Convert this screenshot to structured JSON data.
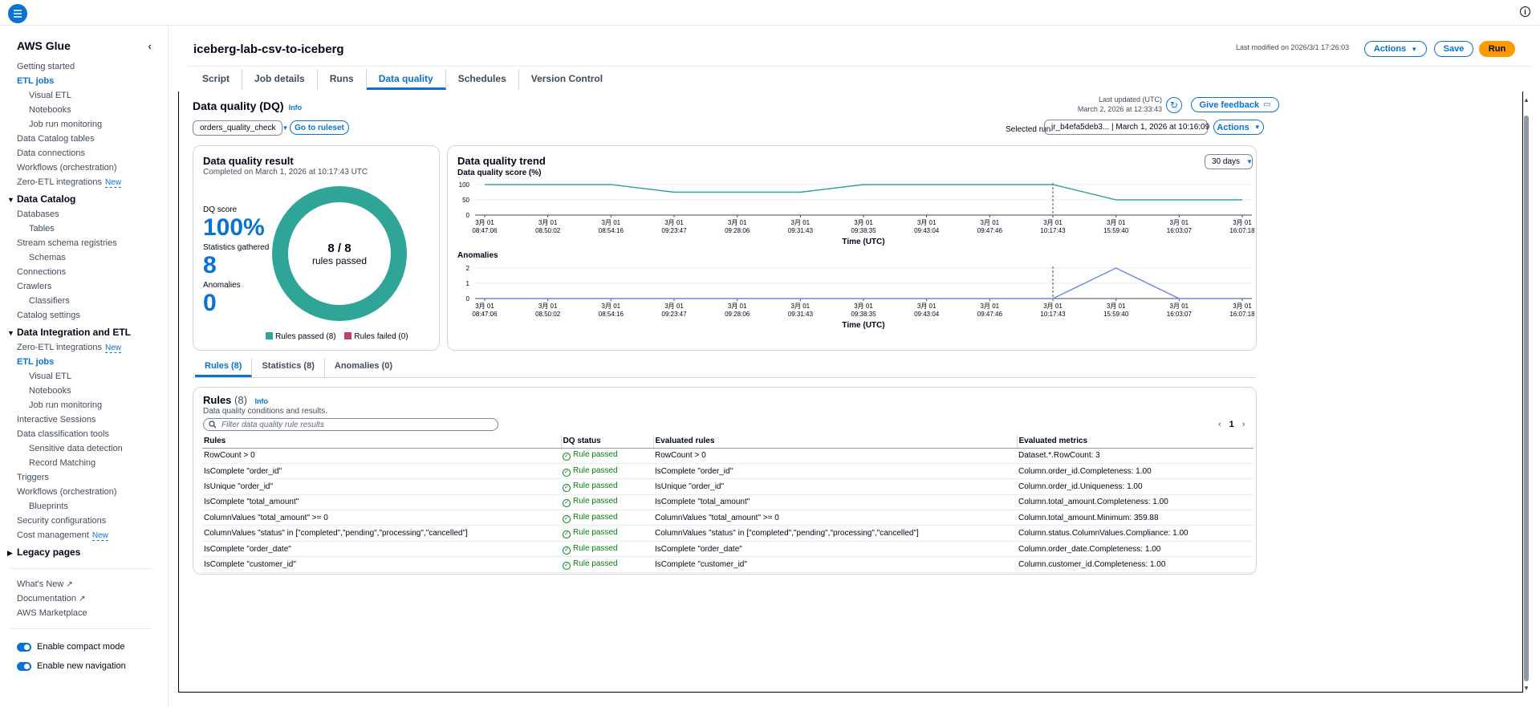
{
  "app": {
    "name": "AWS Glue"
  },
  "sidebar": {
    "items": [
      {
        "label": "Getting started",
        "level": 1
      },
      {
        "label": "ETL jobs",
        "level": 1,
        "active": true
      },
      {
        "label": "Visual ETL",
        "level": 2
      },
      {
        "label": "Notebooks",
        "level": 2
      },
      {
        "label": "Job run monitoring",
        "level": 2
      },
      {
        "label": "Data Catalog tables",
        "level": 1
      },
      {
        "label": "Data connections",
        "level": 1
      },
      {
        "label": "Workflows (orchestration)",
        "level": 1
      },
      {
        "label": "Zero-ETL integrations",
        "level": 1,
        "badge": "New"
      },
      {
        "section": "Data Catalog"
      },
      {
        "label": "Databases",
        "level": 1
      },
      {
        "label": "Tables",
        "level": 2
      },
      {
        "label": "Stream schema registries",
        "level": 1
      },
      {
        "label": "Schemas",
        "level": 2
      },
      {
        "label": "Connections",
        "level": 1
      },
      {
        "label": "Crawlers",
        "level": 1
      },
      {
        "label": "Classifiers",
        "level": 2
      },
      {
        "label": "Catalog settings",
        "level": 1
      },
      {
        "section": "Data Integration and ETL"
      },
      {
        "label": "Zero-ETL integrations",
        "level": 1,
        "badge": "New"
      },
      {
        "label": "ETL jobs",
        "level": 1,
        "active": true
      },
      {
        "label": "Visual ETL",
        "level": 2
      },
      {
        "label": "Notebooks",
        "level": 2
      },
      {
        "label": "Job run monitoring",
        "level": 2
      },
      {
        "label": "Interactive Sessions",
        "level": 1
      },
      {
        "label": "Data classification tools",
        "level": 1
      },
      {
        "label": "Sensitive data detection",
        "level": 2
      },
      {
        "label": "Record Matching",
        "level": 2
      },
      {
        "label": "Triggers",
        "level": 1
      },
      {
        "label": "Workflows (orchestration)",
        "level": 1
      },
      {
        "label": "Blueprints",
        "level": 2
      },
      {
        "label": "Security configurations",
        "level": 1
      },
      {
        "label": "Cost management",
        "level": 1,
        "badge": "New"
      },
      {
        "section": "Legacy pages",
        "collapsed": true
      }
    ],
    "links": [
      "What's New",
      "Documentation",
      "AWS Marketplace"
    ],
    "toggles": [
      "Enable compact mode",
      "Enable new navigation"
    ]
  },
  "header": {
    "job_name": "iceberg-lab-csv-to-iceberg",
    "last_modified": "Last modified on 2026/3/1 17:26:03",
    "actions_label": "Actions",
    "save_label": "Save",
    "run_label": "Run"
  },
  "tabs": [
    "Script",
    "Job details",
    "Runs",
    "Data quality",
    "Schedules",
    "Version Control"
  ],
  "active_tab": "Data quality",
  "dq": {
    "title": "Data quality (DQ)",
    "info": "Info",
    "last_updated_label": "Last updated (UTC)",
    "last_updated_value": "March 2, 2026 at 12:33:43",
    "feedback_label": "Give feedback",
    "ruleset_value": "orders_quality_check",
    "go_to_ruleset": "Go to ruleset",
    "selected_run_label": "Selected run",
    "selected_run_value": "jr_b4efa5deb3... | March 1, 2026 at 10:16:09",
    "actions_label": "Actions"
  },
  "result": {
    "title": "Data quality result",
    "completed": "Completed on March 1, 2026 at 10:17:43 UTC",
    "dq_score_label": "DQ score",
    "dq_score": "100%",
    "stats_label": "Statistics gathered",
    "stats_value": "8",
    "anomalies_label": "Anomalies",
    "anomalies_value": "0",
    "donut_center": "8 / 8",
    "donut_sub": "rules passed",
    "legend_passed": "Rules passed (8)",
    "legend_failed": "Rules failed (0)",
    "passed": 8,
    "failed": 0,
    "colors": {
      "passed": "#2ea597",
      "failed": "#c33d69"
    }
  },
  "trend": {
    "title": "Data quality trend",
    "range_value": "30 days",
    "score_chart_title": "Data quality score (%)",
    "anomaly_chart_title": "Anomalies",
    "xlabel": "Time (UTC)"
  },
  "chart_data": [
    {
      "type": "line",
      "title": "Data quality score (%)",
      "xlabel": "Time (UTC)",
      "categories": [
        "3月 01\n08:47:06",
        "3月 01\n08:50:02",
        "3月 01\n08:54:16",
        "3月 01\n09:23:47",
        "3月 01\n09:28:06",
        "3月 01\n09:31:43",
        "3月 01\n09:38:35",
        "3月 01\n09:43:04",
        "3月 01\n09:47:46",
        "3月 01\n10:17:43",
        "3月 01\n15:59:40",
        "3月 01\n16:03:07",
        "3月 01\n16:07:18"
      ],
      "values": [
        100,
        100,
        100,
        75,
        75,
        75,
        100,
        100,
        100,
        100,
        50,
        50,
        50
      ],
      "yticks": [
        0,
        50,
        100
      ],
      "ylim": [
        0,
        100
      ],
      "marker_index": 9,
      "color": "#2ea597"
    },
    {
      "type": "line",
      "title": "Anomalies",
      "xlabel": "Time (UTC)",
      "categories": [
        "3月 01\n08:47:06",
        "3月 01\n08:50:02",
        "3月 01\n08:54:16",
        "3月 01\n09:23:47",
        "3月 01\n09:28:06",
        "3月 01\n09:31:43",
        "3月 01\n09:38:35",
        "3月 01\n09:43:04",
        "3月 01\n09:47:46",
        "3月 01\n10:17:43",
        "3月 01\n15:59:40",
        "3月 01\n16:03:07",
        "3月 01\n16:07:18"
      ],
      "values": [
        0,
        0,
        0,
        0,
        0,
        0,
        0,
        0,
        0,
        0,
        2,
        0,
        0
      ],
      "yticks": [
        0,
        1,
        2
      ],
      "ylim": [
        0,
        2
      ],
      "marker_index": 9,
      "color": "#688ae8"
    }
  ],
  "subtabs": [
    "Rules (8)",
    "Statistics (8)",
    "Anomalies (0)"
  ],
  "rules": {
    "title": "Rules",
    "count": "(8)",
    "info": "Info",
    "description": "Data quality conditions and results.",
    "filter_placeholder": "Filter data quality rule results",
    "page": "1",
    "columns": [
      "Rules",
      "DQ status",
      "Evaluated rules",
      "Evaluated metrics"
    ],
    "rows": [
      [
        "RowCount > 0",
        "Rule passed",
        "RowCount > 0",
        "Dataset.*.RowCount: 3"
      ],
      [
        "IsComplete \"order_id\"",
        "Rule passed",
        "IsComplete \"order_id\"",
        "Column.order_id.Completeness: 1.00"
      ],
      [
        "IsUnique \"order_id\"",
        "Rule passed",
        "IsUnique \"order_id\"",
        "Column.order_id.Uniqueness: 1.00"
      ],
      [
        "IsComplete \"total_amount\"",
        "Rule passed",
        "IsComplete \"total_amount\"",
        "Column.total_amount.Completeness: 1.00"
      ],
      [
        "ColumnValues \"total_amount\" >= 0",
        "Rule passed",
        "ColumnValues \"total_amount\" >= 0",
        "Column.total_amount.Minimum: 359.88"
      ],
      [
        "ColumnValues \"status\" in [\"completed\",\"pending\",\"processing\",\"cancelled\"]",
        "Rule passed",
        "ColumnValues \"status\" in [\"completed\",\"pending\",\"processing\",\"cancelled\"]",
        "Column.status.ColumnValues.Compliance: 1.00"
      ],
      [
        "IsComplete \"order_date\"",
        "Rule passed",
        "IsComplete \"order_date\"",
        "Column.order_date.Completeness: 1.00"
      ],
      [
        "IsComplete \"customer_id\"",
        "Rule passed",
        "IsComplete \"customer_id\"",
        "Column.customer_id.Completeness: 1.00"
      ]
    ]
  }
}
